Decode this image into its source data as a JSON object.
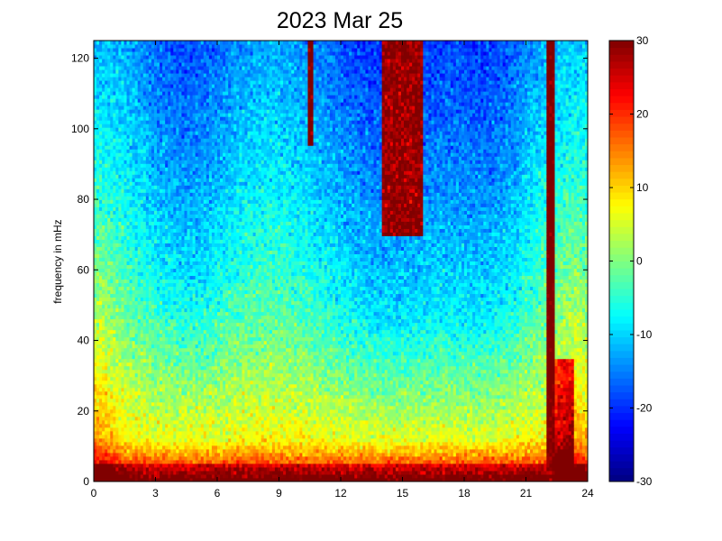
{
  "chart_data": {
    "type": "heatmap",
    "title": "2023 Mar 25",
    "xlabel": "",
    "ylabel": "frequency in mHz",
    "xlim": [
      0,
      24
    ],
    "ylim": [
      0,
      125
    ],
    "x_ticks": [
      "0",
      "3",
      "6",
      "9",
      "12",
      "15",
      "18",
      "21",
      "24"
    ],
    "y_ticks": [
      "0",
      "20",
      "40",
      "60",
      "80",
      "100",
      "120"
    ],
    "colorbar": {
      "colormap": "jet",
      "range": [
        -30,
        30
      ],
      "ticks": [
        "-30",
        "-20",
        "-10",
        "0",
        "10",
        "20",
        "30"
      ]
    },
    "grid": false,
    "notes_visible": {
      "high_power_band": "strong power (about 20 to 30) below about 10 mHz throughout the day",
      "dropout_hours": [
        10.5,
        15.5,
        22.0
      ]
    }
  }
}
